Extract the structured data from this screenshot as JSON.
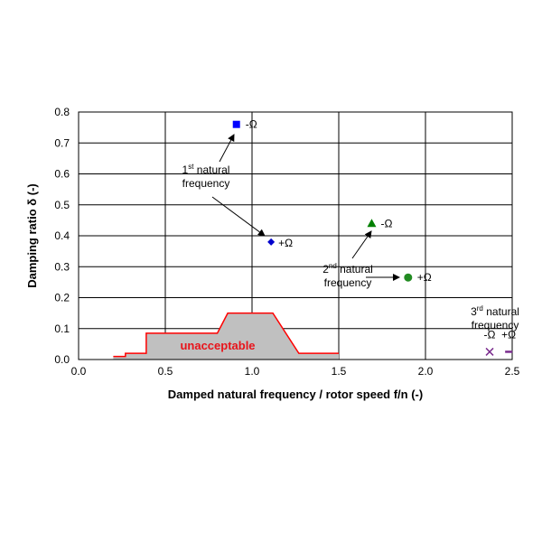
{
  "chart_data": {
    "type": "scatter",
    "xlabel": "Damped natural frequency / rotor speed  f/n (-)",
    "ylabel": "Damping ratio  δ (-)",
    "xlim": [
      0,
      2.5
    ],
    "ylim": [
      0,
      0.8
    ],
    "xticks": [
      "0.0",
      "0.5",
      "1.0",
      "1.5",
      "2.0",
      "2.5"
    ],
    "yticks": [
      "0.0",
      "0.1",
      "0.2",
      "0.3",
      "0.4",
      "0.5",
      "0.6",
      "0.7",
      "0.8"
    ],
    "grid": true,
    "points": [
      {
        "x": 0.91,
        "y": 0.76,
        "label": "-Ω",
        "marker": "square",
        "color": "#0000ff"
      },
      {
        "x": 1.11,
        "y": 0.38,
        "label": "+Ω",
        "marker": "diamond",
        "color": "#0000cc"
      },
      {
        "x": 1.69,
        "y": 0.44,
        "label": "-Ω",
        "marker": "triangle",
        "color": "#008000"
      },
      {
        "x": 1.9,
        "y": 0.265,
        "label": "+Ω",
        "marker": "circle",
        "color": "#228b22"
      },
      {
        "x": 2.37,
        "y": 0.025,
        "label": "-Ω",
        "marker": "x",
        "color": "#7b2d8e"
      },
      {
        "x": 2.48,
        "y": 0.025,
        "label": "+Ω",
        "marker": "dash",
        "color": "#7b2d8e"
      }
    ],
    "unacceptable_region": {
      "label": "unacceptable",
      "boundary": [
        [
          0.2,
          0.01
        ],
        [
          0.27,
          0.01
        ],
        [
          0.27,
          0.02
        ],
        [
          0.39,
          0.02
        ],
        [
          0.39,
          0.085
        ],
        [
          0.8,
          0.085
        ],
        [
          0.86,
          0.15
        ],
        [
          1.12,
          0.15
        ],
        [
          1.27,
          0.02
        ],
        [
          1.5,
          0.02
        ]
      ],
      "color": "#ff0000",
      "fill": "#c0c0c0"
    },
    "annotations": [
      {
        "id": "first",
        "lines": [
          [
            "1",
            "st",
            " natural"
          ],
          [
            "frequency"
          ]
        ]
      },
      {
        "id": "second",
        "lines": [
          [
            "2",
            "nd",
            " natural"
          ],
          [
            "frequency"
          ]
        ]
      },
      {
        "id": "third",
        "lines": [
          [
            "3",
            "rd",
            " natural"
          ],
          [
            "frequency"
          ]
        ]
      }
    ]
  }
}
